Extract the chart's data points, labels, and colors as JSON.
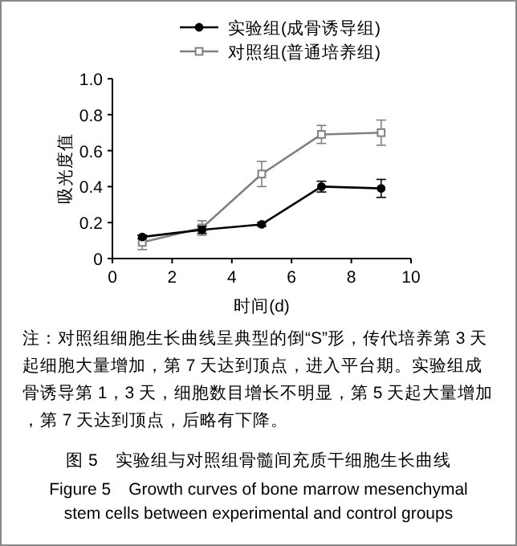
{
  "chart_data": {
    "type": "line",
    "x": [
      1,
      3,
      5,
      7,
      9
    ],
    "xlabel": "时间(d)",
    "ylabel": "吸光度值",
    "xlim": [
      0,
      10
    ],
    "xticks": [
      0,
      2,
      4,
      6,
      8,
      10
    ],
    "ylim": [
      0,
      1
    ],
    "yticks": [
      0,
      {
        "value": 0.2,
        "label": "0.2"
      },
      {
        "value": 0.4,
        "label": "0.4"
      },
      {
        "value": 0.6,
        "label": "0.6"
      },
      {
        "value": 0.8,
        "label": "0.8"
      },
      {
        "value": 1,
        "label": "1.0"
      }
    ],
    "grid": false,
    "legend": "top",
    "line_style": "solid",
    "series": [
      {
        "name": "实验组(成骨诱导组)",
        "color": "#000000",
        "marker": "circle",
        "values": [
          0.12,
          0.16,
          0.19,
          0.4,
          0.39
        ],
        "errors": [
          0.01,
          0.02,
          0.01,
          0.03,
          0.05
        ]
      },
      {
        "name": "对照组(普通培养组)",
        "color": "#808080",
        "marker": "square",
        "values": [
          0.09,
          0.17,
          0.47,
          0.69,
          0.7
        ],
        "errors": [
          0.04,
          0.04,
          0.07,
          0.05,
          0.07
        ]
      }
    ],
    "annotations": [
      "注：对照组细胞生长曲线呈典型的倒“S”形，传代培养第 3 天起细胞大量增加，第 7 天达到顶点，进入平台期。实验组成骨诱导第 1，3 天，细胞数目增长不明显，第 5 天起大量增加，第 7 天达到顶点，后略有下降。",
      "图 5　实验组与对照组骨髓间充质干细胞生长曲线",
      "Figure 5　Growth curves of bone marrow mesenchymal stem cells between experimental and control groups"
    ]
  }
}
